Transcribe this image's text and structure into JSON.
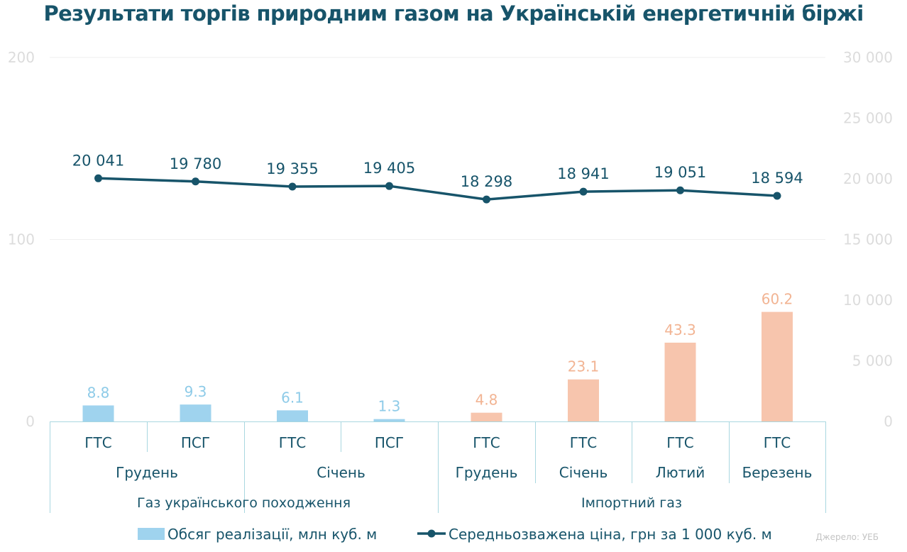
{
  "chart_data": {
    "type": "bar+line",
    "title": "Результати торгів природним газом на Українській енергетичній біржі",
    "x_rows": {
      "points": [
        "ГТС",
        "ПСГ",
        "ГТС",
        "ПСГ",
        "ГТС",
        "ГТС",
        "ГТС",
        "ГТС"
      ],
      "months": [
        "Грудень",
        "Січень",
        "Грудень",
        "Січень",
        "Лютий",
        "Березень"
      ],
      "groups": [
        "Газ українського походження",
        "Імпортний газ"
      ]
    },
    "y_left": {
      "ticks": [
        "200",
        "100",
        "0"
      ],
      "range": [
        0,
        200
      ]
    },
    "y_right": {
      "ticks": [
        "30 000",
        "25 000",
        "20 000",
        "15 000",
        "10 000",
        "5 000",
        "0"
      ],
      "range": [
        0,
        30000
      ]
    },
    "grid": true,
    "series": [
      {
        "name": "Обсяг реалізації, млн куб. м",
        "kind": "bar",
        "axis": "left",
        "values": [
          8.8,
          9.3,
          6.1,
          1.3,
          4.8,
          23.1,
          43.3,
          60.2
        ],
        "labels": [
          "8.8",
          "9.3",
          "6.1",
          "1.3",
          "4.8",
          "23.1",
          "43.3",
          "60.2"
        ],
        "colors": [
          "#9fd3ee",
          "#9fd3ee",
          "#9fd3ee",
          "#9fd3ee",
          "#f7c5ad",
          "#f7c5ad",
          "#f7c5ad",
          "#f7c5ad"
        ]
      },
      {
        "name": "Середньозважена ціна, грн за 1 000 куб. м",
        "kind": "line",
        "axis": "right",
        "color": "#17546a",
        "values": [
          20041,
          19780,
          19355,
          19405,
          18298,
          18941,
          19051,
          18594
        ],
        "labels": [
          "20 041",
          "19 780",
          "19 355",
          "19 405",
          "18 298",
          "18 941",
          "19 051",
          "18 594"
        ]
      }
    ],
    "legend_position": "bottom",
    "source": "Джерело: УЕБ"
  },
  "colors": {
    "title": "#17546a",
    "axis_text": "#dcdcdc",
    "category_text": "#17546a",
    "table_border": "#a9d7e0",
    "grid": "#efefef",
    "bar_domestic": "#9fd3ee",
    "bar_import": "#f7c5ad",
    "label_domestic": "#8ecbe8",
    "label_import": "#f2b493",
    "line": "#17546a"
  }
}
